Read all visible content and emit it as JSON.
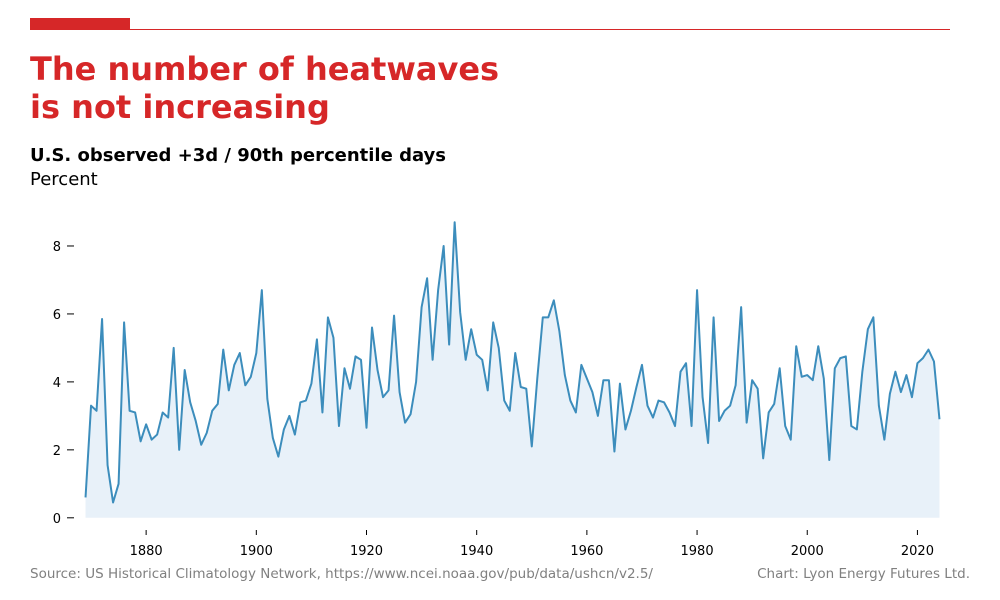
{
  "header": {
    "title_line1": "The number of heatwaves",
    "title_line2": "is not increasing",
    "subtitle": "U.S. observed +3d / 90th percentile days"
  },
  "footer": {
    "source": "Source: US Historical Climatology Network, https://www.ncei.noaa.gov/pub/data/ushcn/v2.5/",
    "credit": "Chart: Lyon Energy Futures Ltd."
  },
  "colors": {
    "accent": "#d62728",
    "line": "#3c8dbc",
    "area": "#e8f1f9",
    "footer_text": "#808080"
  },
  "chart_data": {
    "type": "area",
    "title": "The number of heatwaves is not increasing",
    "ylabel": "Percent",
    "xlabel": "",
    "xlim": [
      1866,
      2027
    ],
    "ylim": [
      -0.3,
      9.0
    ],
    "x_ticks": [
      1880,
      1900,
      1920,
      1940,
      1960,
      1980,
      2000,
      2020
    ],
    "y_ticks": [
      0,
      2,
      4,
      6,
      8
    ],
    "grid": false,
    "legend": "none",
    "series": [
      {
        "x": [
          1869,
          1870,
          1871,
          1872,
          1873,
          1874,
          1875,
          1876,
          1877,
          1878,
          1879,
          1880,
          1881,
          1882,
          1883,
          1884,
          1885,
          1886,
          1887,
          1888,
          1889,
          1890,
          1891,
          1892,
          1893,
          1894,
          1895,
          1896,
          1897,
          1898,
          1899,
          1900,
          1901,
          1902,
          1903,
          1904,
          1905,
          1906,
          1907,
          1908,
          1909,
          1910,
          1911,
          1912,
          1913,
          1914,
          1915,
          1916,
          1917,
          1918,
          1919,
          1920,
          1921,
          1922,
          1923,
          1924,
          1925,
          1926,
          1927,
          1928,
          1929,
          1930,
          1931,
          1932,
          1933,
          1934,
          1935,
          1936,
          1937,
          1938,
          1939,
          1940,
          1941,
          1942,
          1943,
          1944,
          1945,
          1946,
          1947,
          1948,
          1949,
          1950,
          1951,
          1952,
          1953,
          1954,
          1955,
          1956,
          1957,
          1958,
          1959,
          1960,
          1961,
          1962,
          1963,
          1964,
          1965,
          1966,
          1967,
          1968,
          1969,
          1970,
          1971,
          1972,
          1973,
          1974,
          1975,
          1976,
          1977,
          1978,
          1979,
          1980,
          1981,
          1982,
          1983,
          1984,
          1985,
          1986,
          1987,
          1988,
          1989,
          1990,
          1991,
          1992,
          1993,
          1994,
          1995,
          1996,
          1997,
          1998,
          1999,
          2000,
          2001,
          2002,
          2003,
          2004,
          2005,
          2006,
          2007,
          2008,
          2009,
          2010,
          2011,
          2012,
          2013,
          2014,
          2015,
          2016,
          2017,
          2018,
          2019,
          2020,
          2021,
          2022,
          2023,
          2024
        ],
        "values": [
          0.6,
          3.3,
          3.15,
          5.85,
          1.55,
          0.45,
          1.0,
          5.75,
          3.15,
          3.1,
          2.25,
          2.75,
          2.3,
          2.45,
          3.1,
          2.95,
          5.0,
          2.0,
          4.35,
          3.4,
          2.85,
          2.15,
          2.5,
          3.15,
          3.35,
          4.95,
          3.75,
          4.5,
          4.85,
          3.9,
          4.15,
          4.85,
          6.7,
          3.5,
          2.35,
          1.8,
          2.6,
          3.0,
          2.45,
          3.4,
          3.45,
          3.95,
          5.25,
          3.1,
          5.9,
          5.3,
          2.7,
          4.4,
          3.8,
          4.75,
          4.65,
          2.65,
          5.6,
          4.35,
          3.55,
          3.75,
          5.95,
          3.7,
          2.8,
          3.05,
          4.0,
          6.2,
          7.05,
          4.65,
          6.7,
          8.0,
          5.1,
          8.7,
          6.05,
          4.65,
          5.55,
          4.8,
          4.65,
          3.75,
          5.75,
          5.0,
          3.45,
          3.15,
          4.85,
          3.85,
          3.8,
          2.1,
          4.1,
          5.9,
          5.9,
          6.4,
          5.5,
          4.2,
          3.45,
          3.1,
          4.5,
          4.1,
          3.7,
          3.0,
          4.05,
          4.05,
          1.95,
          3.95,
          2.6,
          3.15,
          3.85,
          4.5,
          3.3,
          2.95,
          3.45,
          3.4,
          3.1,
          2.7,
          4.3,
          4.55,
          2.7,
          6.7,
          3.55,
          2.2,
          5.9,
          2.85,
          3.15,
          3.3,
          3.9,
          6.2,
          2.8,
          4.05,
          3.8,
          1.75,
          3.1,
          3.35,
          4.4,
          2.7,
          2.3,
          5.05,
          4.15,
          4.2,
          4.05,
          5.05,
          4.1,
          1.7,
          4.4,
          4.7,
          4.75,
          2.7,
          2.6,
          4.3,
          5.55,
          5.9,
          3.3,
          2.3,
          3.65,
          4.3,
          3.7,
          4.2,
          3.55,
          4.55,
          4.7,
          4.95,
          4.6,
          2.9
        ]
      }
    ]
  }
}
